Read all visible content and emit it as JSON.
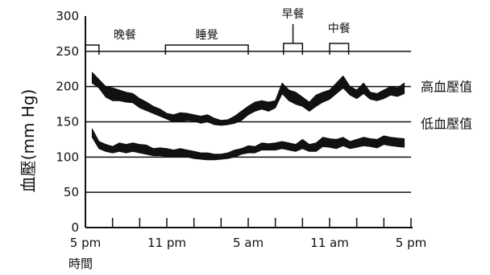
{
  "chart_data": {
    "type": "line",
    "title": "",
    "ylabel": "血壓(mm Hg)",
    "xlabel": "時間",
    "ylim": [
      0,
      300
    ],
    "xlim": [
      0,
      24
    ],
    "grid": "horizontal",
    "yticks": [
      {
        "value": 0,
        "label": "0"
      },
      {
        "value": 50,
        "label": "50"
      },
      {
        "value": 100,
        "label": "100"
      },
      {
        "value": 150,
        "label": "150"
      },
      {
        "value": 200,
        "label": "200"
      },
      {
        "value": 250,
        "label": "250"
      },
      {
        "value": 300,
        "label": "300"
      }
    ],
    "xticks": [
      {
        "value": 0,
        "label": "5 pm"
      },
      {
        "value": 6,
        "label": "11 pm"
      },
      {
        "value": 12,
        "label": "5 am"
      },
      {
        "value": 18,
        "label": "11 am"
      },
      {
        "value": 24,
        "label": "5 pm"
      }
    ],
    "minor_ticks": [
      0,
      2,
      4,
      6,
      8,
      10,
      12,
      14,
      16,
      18,
      20,
      22,
      24
    ],
    "periods": [
      {
        "label": "晚餐",
        "start": 0,
        "end": 1
      },
      {
        "label": "睡覺",
        "start": 5.9,
        "end": 12
      },
      {
        "label": "早餐",
        "start": 14.6,
        "end": 16
      },
      {
        "label": "中餐",
        "start": 18,
        "end": 19.4
      }
    ],
    "series": [
      {
        "name": "高血壓值",
        "x": [
          0.5,
          1,
          1.5,
          2,
          2.5,
          3,
          3.5,
          4,
          4.5,
          5,
          5.5,
          6,
          6.5,
          7,
          7.5,
          8,
          8.5,
          9,
          9.5,
          10,
          10.5,
          11,
          11.5,
          12,
          12.5,
          13,
          13.5,
          14,
          14.5,
          15,
          15.5,
          16,
          16.5,
          17,
          17.5,
          18,
          18.5,
          19,
          19.5,
          20,
          20.5,
          21,
          21.5,
          22,
          22.5,
          23,
          23.5
        ],
        "upper": [
          220,
          210,
          200,
          198,
          195,
          192,
          190,
          183,
          178,
          172,
          168,
          162,
          160,
          163,
          162,
          160,
          158,
          160,
          155,
          152,
          153,
          158,
          165,
          172,
          178,
          180,
          178,
          180,
          205,
          195,
          192,
          185,
          178,
          188,
          192,
          195,
          205,
          215,
          200,
          195,
          205,
          192,
          190,
          195,
          200,
          198,
          205
        ],
        "lower": [
          205,
          198,
          185,
          180,
          180,
          178,
          177,
          170,
          166,
          162,
          158,
          154,
          150,
          150,
          152,
          151,
          148,
          150,
          146,
          145,
          146,
          148,
          152,
          160,
          165,
          168,
          165,
          170,
          190,
          180,
          175,
          172,
          165,
          172,
          178,
          182,
          190,
          198,
          188,
          183,
          190,
          182,
          180,
          183,
          188,
          186,
          190
        ]
      },
      {
        "name": "低血壓值",
        "x": [
          0.5,
          1,
          1.5,
          2,
          2.5,
          3,
          3.5,
          4,
          4.5,
          5,
          5.5,
          6,
          6.5,
          7,
          7.5,
          8,
          8.5,
          9,
          9.5,
          10,
          10.5,
          11,
          11.5,
          12,
          12.5,
          13,
          13.5,
          14,
          14.5,
          15,
          15.5,
          16,
          16.5,
          17,
          17.5,
          18,
          18.5,
          19,
          19.5,
          20,
          20.5,
          21,
          21.5,
          22,
          22.5,
          23,
          23.5
        ],
        "upper": [
          140,
          122,
          118,
          115,
          120,
          118,
          120,
          118,
          117,
          112,
          113,
          112,
          110,
          112,
          110,
          108,
          106,
          106,
          104,
          104,
          106,
          110,
          112,
          116,
          115,
          120,
          119,
          120,
          122,
          120,
          118,
          125,
          118,
          120,
          128,
          126,
          125,
          128,
          122,
          125,
          128,
          126,
          125,
          130,
          128,
          127,
          126
        ],
        "lower": [
          128,
          112,
          108,
          106,
          108,
          106,
          108,
          106,
          104,
          102,
          102,
          101,
          100,
          100,
          100,
          98,
          97,
          96,
          96,
          97,
          98,
          100,
          104,
          106,
          106,
          110,
          110,
          110,
          112,
          110,
          108,
          112,
          108,
          108,
          115,
          114,
          112,
          116,
          112,
          114,
          116,
          115,
          113,
          118,
          116,
          115,
          114
        ]
      }
    ]
  }
}
